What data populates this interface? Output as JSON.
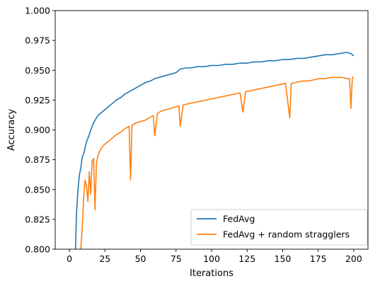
{
  "chart_data": {
    "type": "line",
    "title": "",
    "xlabel": "Iterations",
    "ylabel": "Accuracy",
    "xlim": [
      -10,
      210
    ],
    "ylim": [
      0.8,
      1.0
    ],
    "xticks": [
      0,
      25,
      50,
      75,
      100,
      125,
      150,
      175,
      200
    ],
    "yticks": [
      0.8,
      0.825,
      0.85,
      0.875,
      0.9,
      0.925,
      0.95,
      0.975,
      1.0
    ],
    "ytick_labels": [
      "0.800",
      "0.825",
      "0.850",
      "0.875",
      "0.900",
      "0.925",
      "0.950",
      "0.975",
      "1.000"
    ],
    "grid": false,
    "legend_position": "bottom-right",
    "series": [
      {
        "name": "FedAvg",
        "color": "#1f77b4",
        "points": [
          [
            4,
            0.79
          ],
          [
            5,
            0.83
          ],
          [
            6,
            0.85
          ],
          [
            7,
            0.862
          ],
          [
            8,
            0.868
          ],
          [
            9,
            0.877
          ],
          [
            10,
            0.88
          ],
          [
            11,
            0.885
          ],
          [
            12,
            0.89
          ],
          [
            13,
            0.893
          ],
          [
            14,
            0.896
          ],
          [
            15,
            0.9
          ],
          [
            16,
            0.903
          ],
          [
            17,
            0.906
          ],
          [
            18,
            0.908
          ],
          [
            19,
            0.91
          ],
          [
            20,
            0.912
          ],
          [
            22,
            0.914
          ],
          [
            24,
            0.916
          ],
          [
            26,
            0.918
          ],
          [
            28,
            0.92
          ],
          [
            30,
            0.922
          ],
          [
            33,
            0.925
          ],
          [
            36,
            0.927
          ],
          [
            39,
            0.93
          ],
          [
            42,
            0.932
          ],
          [
            45,
            0.934
          ],
          [
            48,
            0.936
          ],
          [
            51,
            0.938
          ],
          [
            54,
            0.94
          ],
          [
            57,
            0.941
          ],
          [
            60,
            0.943
          ],
          [
            63,
            0.944
          ],
          [
            66,
            0.945
          ],
          [
            69,
            0.946
          ],
          [
            72,
            0.947
          ],
          [
            75,
            0.948
          ],
          [
            78,
            0.951
          ],
          [
            82,
            0.952
          ],
          [
            86,
            0.952
          ],
          [
            90,
            0.953
          ],
          [
            95,
            0.953
          ],
          [
            100,
            0.954
          ],
          [
            105,
            0.954
          ],
          [
            110,
            0.955
          ],
          [
            115,
            0.955
          ],
          [
            120,
            0.956
          ],
          [
            125,
            0.956
          ],
          [
            130,
            0.957
          ],
          [
            135,
            0.957
          ],
          [
            140,
            0.958
          ],
          [
            145,
            0.958
          ],
          [
            150,
            0.959
          ],
          [
            155,
            0.959
          ],
          [
            160,
            0.96
          ],
          [
            165,
            0.96
          ],
          [
            170,
            0.961
          ],
          [
            175,
            0.962
          ],
          [
            180,
            0.963
          ],
          [
            185,
            0.963
          ],
          [
            190,
            0.964
          ],
          [
            195,
            0.965
          ],
          [
            198,
            0.964
          ],
          [
            200,
            0.962
          ]
        ]
      },
      {
        "name": "FedAvg + random stragglers",
        "color": "#ff7f0e",
        "points": [
          [
            8,
            0.8
          ],
          [
            9,
            0.818
          ],
          [
            10,
            0.842
          ],
          [
            11,
            0.858
          ],
          [
            12,
            0.853
          ],
          [
            13,
            0.84
          ],
          [
            14,
            0.865
          ],
          [
            15,
            0.846
          ],
          [
            16,
            0.874
          ],
          [
            17,
            0.876
          ],
          [
            18,
            0.833
          ],
          [
            19,
            0.872
          ],
          [
            20,
            0.878
          ],
          [
            22,
            0.884
          ],
          [
            24,
            0.887
          ],
          [
            26,
            0.889
          ],
          [
            28,
            0.891
          ],
          [
            30,
            0.893
          ],
          [
            33,
            0.896
          ],
          [
            36,
            0.898
          ],
          [
            39,
            0.901
          ],
          [
            42,
            0.903
          ],
          [
            43,
            0.858
          ],
          [
            44,
            0.904
          ],
          [
            47,
            0.906
          ],
          [
            50,
            0.907
          ],
          [
            53,
            0.908
          ],
          [
            56,
            0.91
          ],
          [
            59,
            0.912
          ],
          [
            60,
            0.895
          ],
          [
            62,
            0.914
          ],
          [
            65,
            0.916
          ],
          [
            68,
            0.917
          ],
          [
            71,
            0.918
          ],
          [
            74,
            0.919
          ],
          [
            77,
            0.92
          ],
          [
            78,
            0.903
          ],
          [
            80,
            0.921
          ],
          [
            84,
            0.922
          ],
          [
            88,
            0.923
          ],
          [
            92,
            0.924
          ],
          [
            96,
            0.925
          ],
          [
            100,
            0.926
          ],
          [
            104,
            0.927
          ],
          [
            108,
            0.928
          ],
          [
            112,
            0.929
          ],
          [
            116,
            0.93
          ],
          [
            120,
            0.931
          ],
          [
            122,
            0.915
          ],
          [
            124,
            0.932
          ],
          [
            128,
            0.933
          ],
          [
            132,
            0.934
          ],
          [
            136,
            0.935
          ],
          [
            140,
            0.936
          ],
          [
            144,
            0.937
          ],
          [
            148,
            0.938
          ],
          [
            152,
            0.939
          ],
          [
            155,
            0.91
          ],
          [
            156,
            0.939
          ],
          [
            160,
            0.94
          ],
          [
            164,
            0.941
          ],
          [
            168,
            0.941
          ],
          [
            172,
            0.942
          ],
          [
            176,
            0.943
          ],
          [
            180,
            0.943
          ],
          [
            184,
            0.944
          ],
          [
            188,
            0.944
          ],
          [
            192,
            0.944
          ],
          [
            195,
            0.943
          ],
          [
            197,
            0.943
          ],
          [
            198,
            0.918
          ],
          [
            199,
            0.944
          ],
          [
            200,
            0.944
          ]
        ]
      }
    ]
  }
}
